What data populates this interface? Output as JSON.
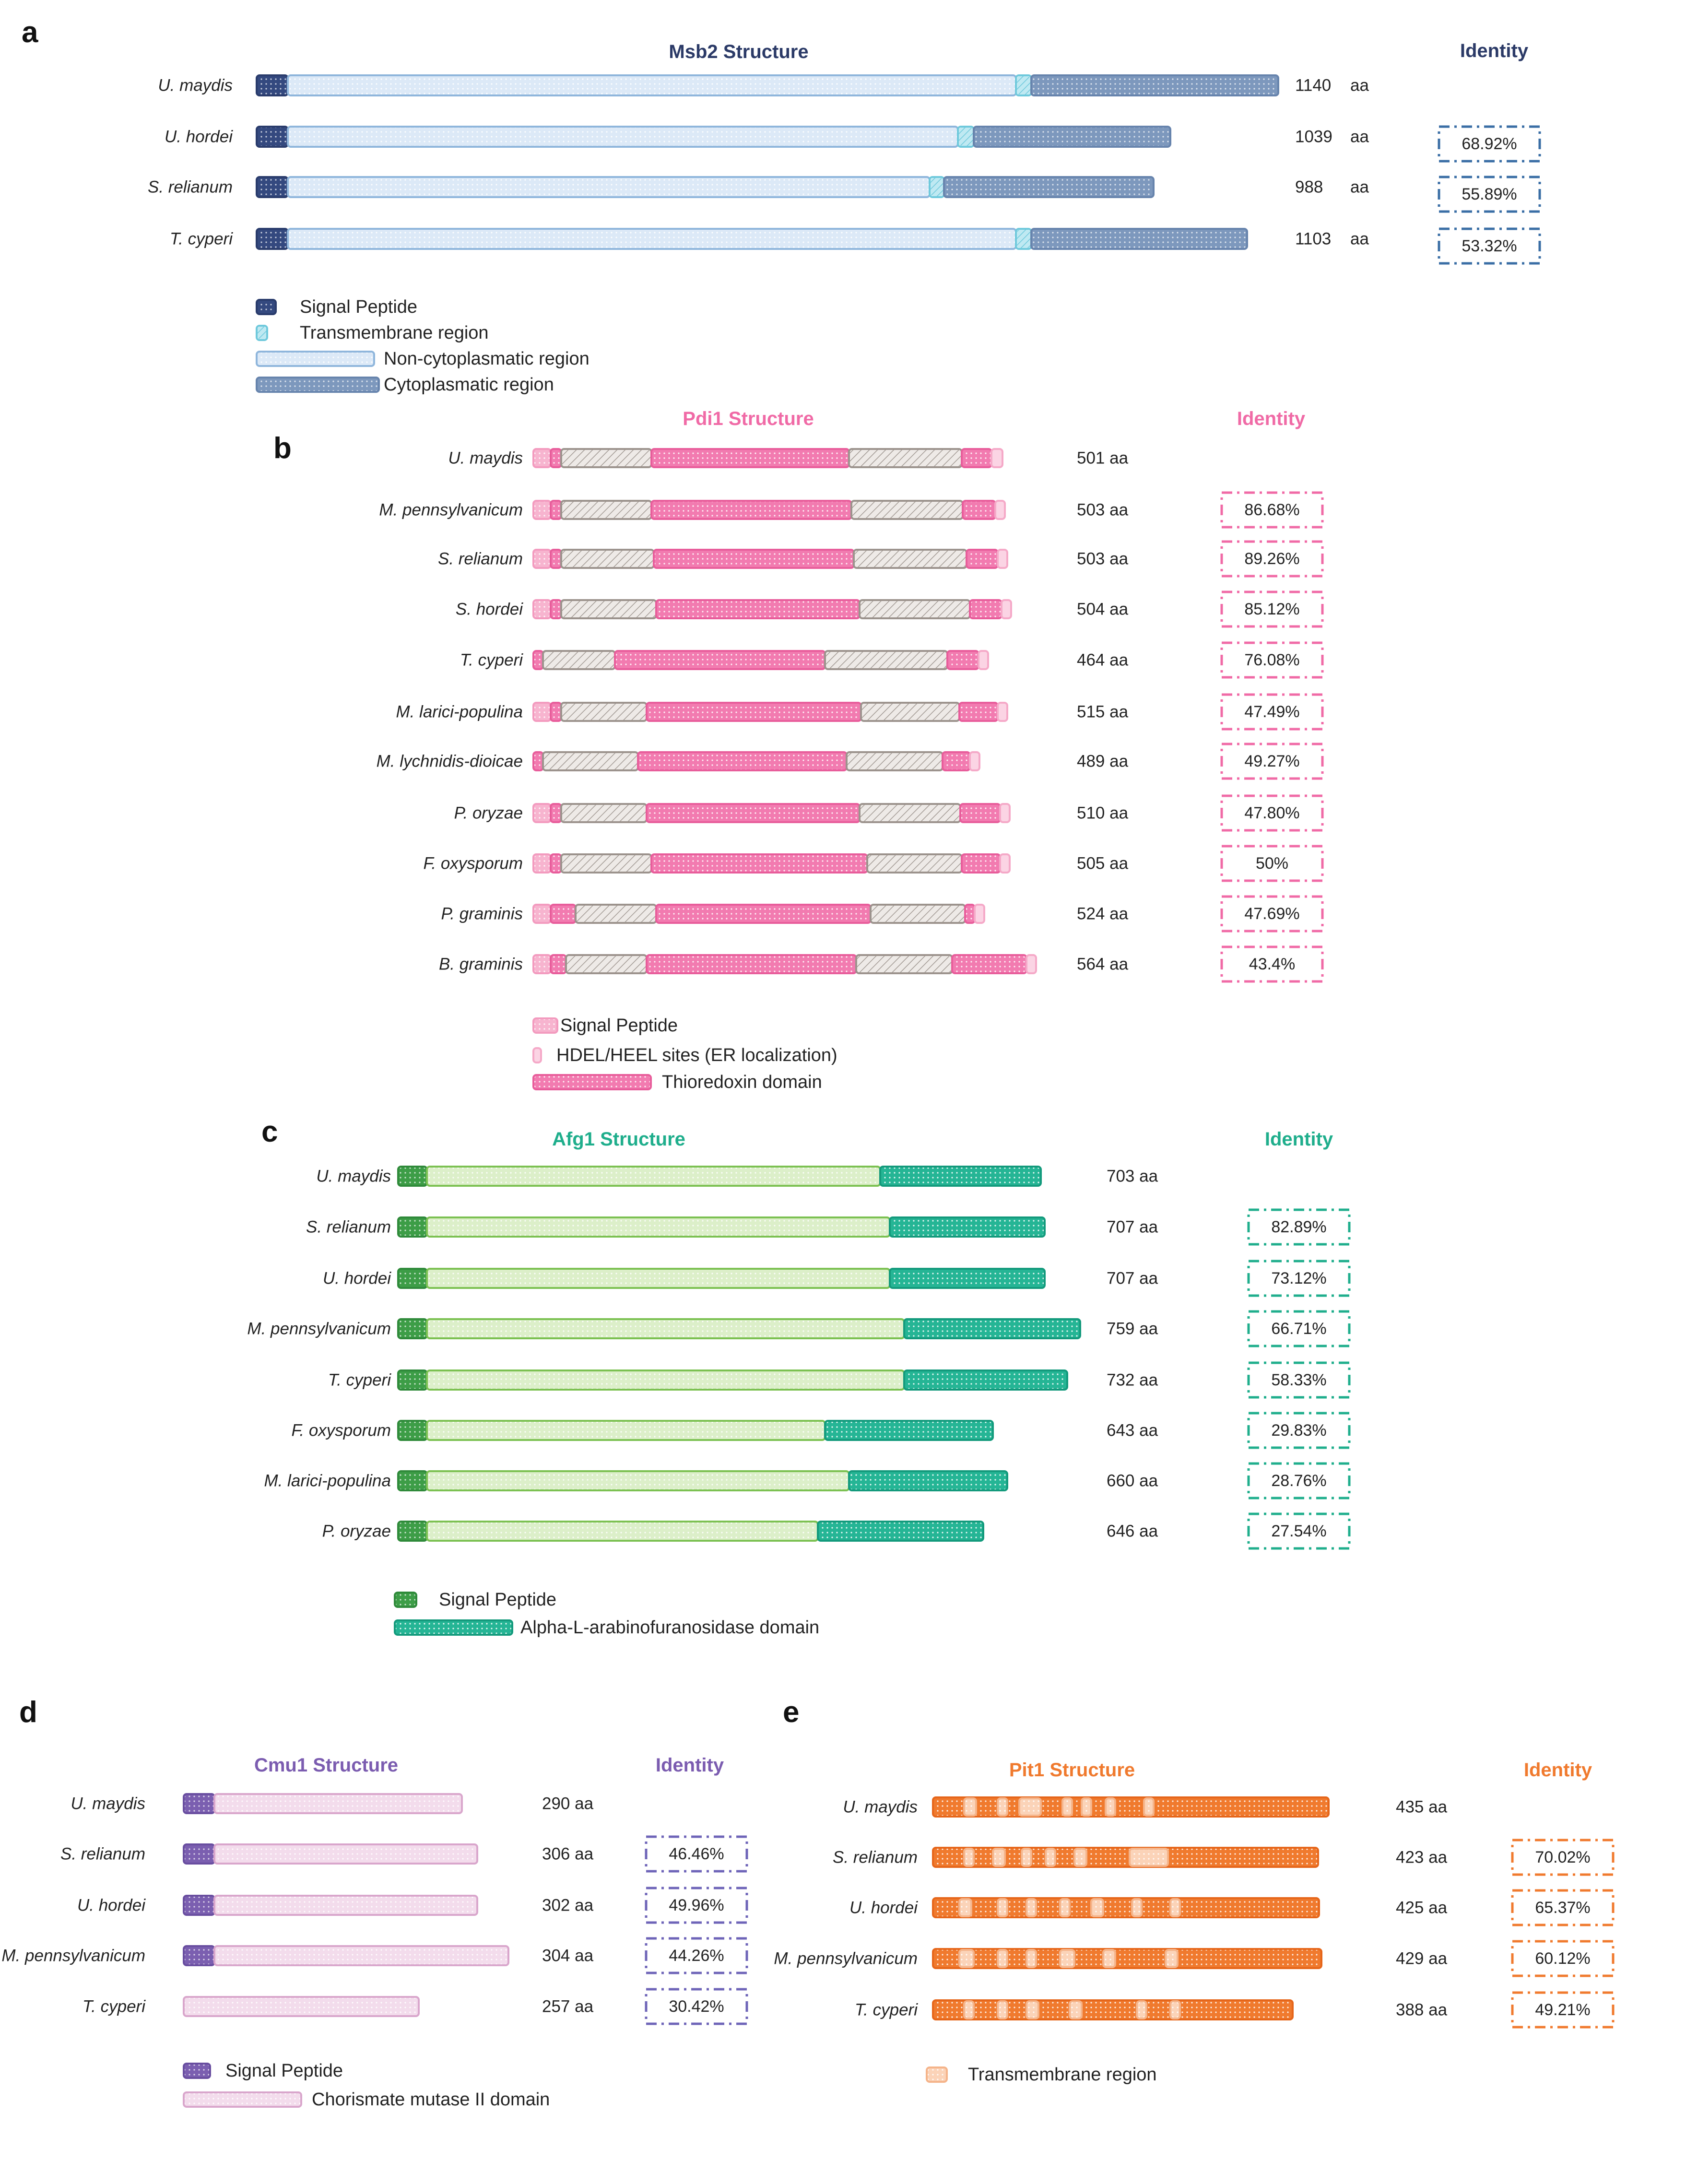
{
  "colors": {
    "msb2_title": "#2b3a67",
    "pdi1_title": "#f06aa6",
    "afg1_title": "#1fae8c",
    "cmu1_title": "#7b5cb0",
    "pit1_title": "#f07a2e",
    "ident_a": "#3a6ea5",
    "ident_b": "#f06aa6",
    "ident_c": "#1fae8c",
    "ident_d": "#6e64b8",
    "ident_e": "#f07a2e"
  },
  "panels": [
    {
      "id": "a",
      "letter": "a",
      "title": "Msb2 Structure",
      "identity_label": "Identity",
      "species": [
        "U. maydis",
        "U. hordei",
        "S. relianum",
        "T. cyperi"
      ],
      "lengths": [
        "1140",
        "1039",
        "988",
        "1103"
      ],
      "length_unit": "aa",
      "identity": [
        "",
        "68.92%",
        "55.89%",
        "53.32%"
      ],
      "legend": [
        "Signal Peptide",
        "Transmembrane region",
        "Non-cytoplasmatic region",
        "Cytoplasmatic region"
      ]
    },
    {
      "id": "b",
      "letter": "b",
      "title": "Pdi1 Structure",
      "identity_label": "Identity",
      "species": [
        "U. maydis",
        "M. pennsylvanicum",
        "S. relianum",
        "S. hordei",
        "T. cyperi",
        "M. larici-populina",
        "M. lychnidis-dioicae",
        "P. oryzae",
        "F. oxysporum",
        "P. graminis",
        "B. graminis"
      ],
      "lengths": [
        "501 aa",
        "503 aa",
        "503 aa",
        "504 aa",
        "464 aa",
        "515 aa",
        "489 aa",
        "510 aa",
        "505 aa",
        "524 aa",
        "564 aa"
      ],
      "identity": [
        "",
        "86.68%",
        "89.26%",
        "85.12%",
        "76.08%",
        "47.49%",
        "49.27%",
        "47.80%",
        "50%",
        "47.69%",
        "43.4%"
      ],
      "legend": [
        "Signal Peptide",
        "HDEL/HEEL sites (ER localization)",
        "Thioredoxin domain"
      ]
    },
    {
      "id": "c",
      "letter": "c",
      "title": "Afg1 Structure",
      "identity_label": "Identity",
      "species": [
        "U. maydis",
        "S. relianum",
        "U. hordei",
        "M. pennsylvanicum",
        "T. cyperi",
        "F. oxysporum",
        "M. larici-populina",
        "P. oryzae"
      ],
      "lengths": [
        "703 aa",
        "707 aa",
        "707 aa",
        "759 aa",
        "732 aa",
        "643 aa",
        "660 aa",
        "646 aa"
      ],
      "identity": [
        "",
        "82.89%",
        "73.12%",
        "66.71%",
        "58.33%",
        "29.83%",
        "28.76%",
        "27.54%"
      ],
      "legend": [
        "Signal Peptide",
        "Alpha-L-arabinofuranosidase domain"
      ]
    },
    {
      "id": "d",
      "letter": "d",
      "title": "Cmu1 Structure",
      "identity_label": "Identity",
      "species": [
        "U. maydis",
        "S. relianum",
        "U. hordei",
        "M. pennsylvanicum",
        "T. cyperi"
      ],
      "lengths": [
        "290 aa",
        "306 aa",
        "302 aa",
        "304 aa",
        "257 aa"
      ],
      "identity": [
        "",
        "46.46%",
        "49.96%",
        "44.26%",
        "30.42%"
      ],
      "legend": [
        "Signal Peptide",
        "Chorismate mutase II domain"
      ]
    },
    {
      "id": "e",
      "letter": "e",
      "title": "Pit1 Structure",
      "identity_label": "Identity",
      "species": [
        "U. maydis",
        "S. relianum",
        "U. hordei",
        "M. pennsylvanicum",
        "T. cyperi"
      ],
      "lengths": [
        "435 aa",
        "423 aa",
        "425 aa",
        "429 aa",
        "388 aa"
      ],
      "identity": [
        "",
        "70.02%",
        "65.37%",
        "60.12%",
        "49.21%"
      ],
      "legend": [
        "Transmembrane region"
      ]
    }
  ]
}
